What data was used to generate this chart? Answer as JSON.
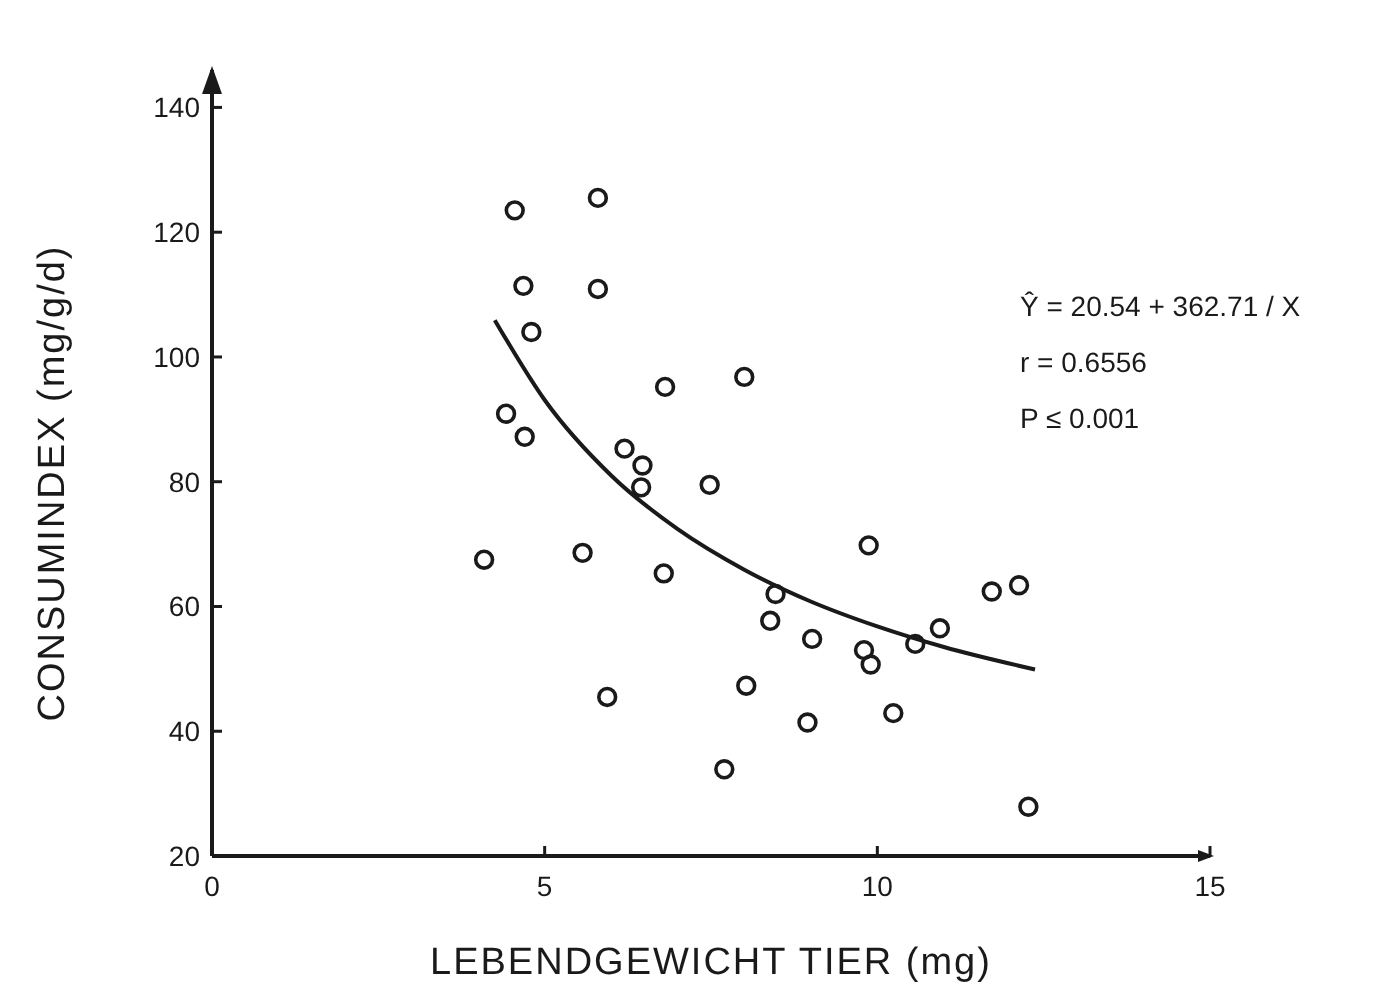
{
  "chart_data": {
    "type": "scatter",
    "xlabel": "LEBENDGEWICHT TIER (mg)",
    "ylabel": "CONSUMINDEX (mg/g/d)",
    "xlim": [
      0,
      15
    ],
    "ylim": [
      20,
      146
    ],
    "xticks": [
      0,
      5,
      10,
      15
    ],
    "yticks": [
      20,
      40,
      60,
      80,
      100,
      120,
      140
    ],
    "grid": false,
    "marker": "circle",
    "series": [
      {
        "color": "#1a1a1a",
        "x": [
          4.55,
          5.8,
          4.68,
          5.8,
          4.8,
          6.81,
          8.0,
          4.42,
          4.7,
          6.2,
          6.47,
          6.45,
          7.48,
          4.09,
          5.57,
          6.79,
          5.94,
          8.03,
          7.7,
          8.47,
          8.39,
          9.02,
          9.8,
          9.9,
          9.87,
          10.57,
          10.94,
          11.72,
          12.13,
          8.95,
          10.24,
          12.27
        ],
        "values": [
          123.5,
          125.5,
          111.4,
          110.9,
          104,
          95.2,
          96.8,
          90.9,
          87.2,
          85.3,
          82.6,
          79.1,
          79.5,
          67.5,
          68.6,
          65.3,
          45.5,
          47.3,
          33.9,
          62,
          57.7,
          54.8,
          53,
          50.7,
          69.8,
          54,
          56.5,
          62.4,
          63.4,
          41.4,
          42.9,
          27.9
        ]
      },
      {
        "type": "line",
        "color": "#1a1a1a",
        "line_style": "solid",
        "marker": "none",
        "x": [
          4.25,
          5,
          6,
          7,
          8,
          9,
          10,
          11,
          12.37
        ],
        "values": [
          105.9,
          93.1,
          81,
          72.4,
          65.9,
          60.8,
          56.8,
          53.5,
          49.9
        ]
      }
    ],
    "annotations": [
      "Ŷ = 20.54 + 362.71 / X",
      "r = 0.6556",
      "P ≤ 0.001"
    ]
  }
}
